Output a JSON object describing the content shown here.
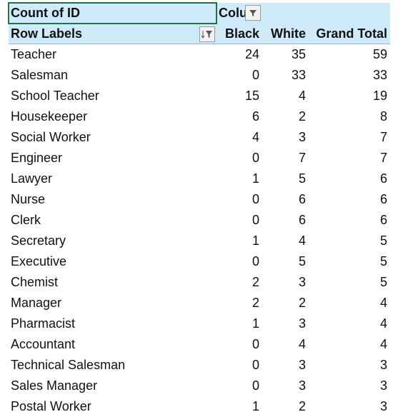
{
  "header": {
    "title": "Count of ID",
    "column_field": "Colu"
  },
  "table": {
    "columns": [
      "Row Labels",
      "Black",
      "White",
      "Grand Total"
    ],
    "rows": [
      [
        "Teacher",
        24,
        35,
        59
      ],
      [
        "Salesman",
        0,
        33,
        33
      ],
      [
        "School Teacher",
        15,
        4,
        19
      ],
      [
        "Housekeeper",
        6,
        2,
        8
      ],
      [
        "Social Worker",
        4,
        3,
        7
      ],
      [
        "Engineer",
        0,
        7,
        7
      ],
      [
        "Lawyer",
        1,
        5,
        6
      ],
      [
        "Nurse",
        0,
        6,
        6
      ],
      [
        "Clerk",
        0,
        6,
        6
      ],
      [
        "Secretary",
        1,
        4,
        5
      ],
      [
        "Executive",
        0,
        5,
        5
      ],
      [
        "Chemist",
        2,
        3,
        5
      ],
      [
        "Manager",
        2,
        2,
        4
      ],
      [
        "Pharmacist",
        1,
        3,
        4
      ],
      [
        "Accountant",
        0,
        4,
        4
      ],
      [
        "Technical Salesman",
        0,
        3,
        3
      ],
      [
        "Sales Manager",
        0,
        3,
        3
      ],
      [
        "Postal Worker",
        1,
        2,
        3
      ]
    ]
  }
}
